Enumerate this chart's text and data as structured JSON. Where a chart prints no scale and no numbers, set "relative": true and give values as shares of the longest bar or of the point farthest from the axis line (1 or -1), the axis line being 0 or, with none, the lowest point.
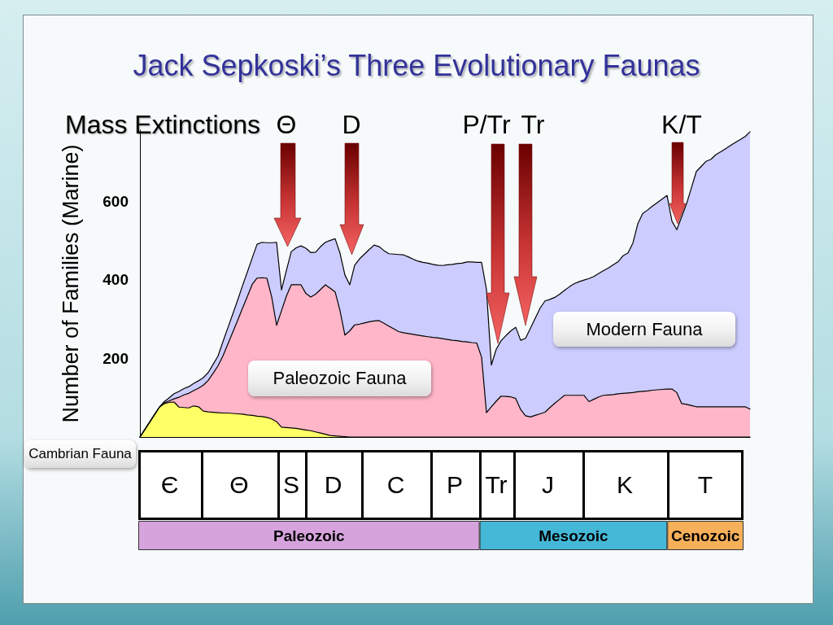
{
  "chart_data": [
    {
      "type": "area",
      "title": "Jack Sepkoski’s Three Evolutionary Faunas",
      "ylabel": "Number of Families (Marine)",
      "annotations": [
        "Mass Extinctions",
        "Θ",
        "D",
        "P/Tr",
        "Tr",
        "K/T"
      ],
      "stacked": true,
      "ylim": [
        0,
        780
      ],
      "yticks": [
        200,
        400,
        600
      ],
      "tick_labels": "y",
      "categories": [
        null,
        null,
        null,
        null,
        null,
        null,
        null,
        null,
        null,
        null,
        null,
        null,
        null,
        null,
        null,
        null,
        null,
        null,
        null,
        null,
        null,
        null,
        null,
        null,
        null,
        null,
        null,
        null,
        null,
        null,
        null,
        null,
        null,
        null,
        null,
        null,
        null,
        null,
        null,
        null,
        null,
        null,
        null,
        null,
        null,
        null,
        null,
        null,
        null,
        null,
        null,
        null,
        null,
        null,
        null,
        null,
        null,
        null,
        null,
        null,
        null,
        null,
        null,
        null,
        null,
        null,
        null,
        null,
        null,
        null,
        null,
        null,
        null,
        null,
        null,
        null,
        null,
        null,
        null,
        null,
        null,
        null,
        null,
        null,
        null,
        null,
        null,
        null,
        null,
        null,
        null,
        null,
        null,
        null,
        null,
        null,
        null,
        null,
        null,
        null,
        null,
        null,
        null,
        null,
        null,
        null,
        null,
        null,
        null,
        null,
        null,
        null,
        null,
        null,
        null,
        null,
        null,
        null,
        null,
        null,
        null,
        null,
        null,
        null,
        null,
        null
      ],
      "series": [
        {
          "name": "Cambrian Fauna",
          "color": "#ffff66",
          "values": [
            0,
            19,
            38,
            57,
            76,
            85,
            88,
            89,
            76,
            75,
            74,
            79,
            77,
            66,
            64,
            63,
            62,
            61,
            61,
            60,
            59,
            58,
            56,
            55,
            53,
            52,
            50,
            46,
            39,
            25,
            24,
            23,
            22,
            20,
            18,
            16,
            13,
            10,
            7,
            4,
            3,
            2,
            1,
            0,
            0,
            0,
            0,
            0,
            0,
            0,
            0,
            0,
            0,
            0,
            0,
            0,
            0,
            0,
            0,
            0,
            0,
            0,
            0,
            0,
            0,
            0,
            0,
            0,
            0,
            0,
            0,
            0,
            0,
            0,
            0,
            0,
            0,
            0,
            0,
            0,
            0,
            0,
            0,
            0,
            0,
            0,
            0,
            0,
            0,
            0,
            0,
            0,
            0,
            0,
            0,
            0,
            0,
            0,
            0,
            0,
            0,
            0,
            0,
            0,
            0,
            0,
            0,
            0,
            0,
            0,
            0,
            0,
            0,
            0,
            0,
            0,
            0,
            0,
            0,
            0,
            0,
            0,
            0,
            0,
            0,
            0
          ]
        },
        {
          "name": "Paleozoic Fauna",
          "color": "#ffb6c9",
          "values": [
            0,
            0,
            0,
            0,
            0,
            2,
            4,
            8,
            25,
            32,
            37,
            39,
            47,
            66,
            80,
            99,
            119,
            145,
            175,
            206,
            237,
            269,
            301,
            333,
            351,
            353,
            354,
            310,
            245,
            296,
            334,
            364,
            365,
            367,
            347,
            340,
            350,
            365,
            380,
            374,
            366,
            319,
            258,
            270,
            285,
            287,
            290,
            293,
            295,
            296,
            289,
            282,
            275,
            268,
            265,
            263,
            261,
            259,
            257,
            255,
            253,
            252,
            250,
            248,
            246,
            245,
            243,
            242,
            240,
            239,
            203,
            62,
            77,
            91,
            104,
            103,
            102,
            98,
            70,
            54,
            51,
            55,
            59,
            63,
            75,
            86,
            96,
            106,
            106,
            106,
            106,
            106,
            90,
            96,
            102,
            106,
            107,
            108,
            110,
            111,
            112,
            113,
            115,
            116,
            117,
            119,
            120,
            121,
            122,
            122,
            113,
            85,
            83,
            80,
            77,
            77,
            77,
            77,
            77,
            77,
            77,
            77,
            77,
            77,
            77,
            71
          ]
        },
        {
          "name": "Modern Fauna",
          "color": "#ccccff",
          "values": [
            0,
            0,
            0,
            0,
            0,
            3,
            8,
            13,
            15,
            16,
            17,
            18,
            19,
            19,
            20,
            23,
            25,
            36,
            41,
            46,
            51,
            57,
            62,
            67,
            86,
            90,
            90,
            138,
            211,
            53,
            65,
            84,
            94,
            99,
            115,
            113,
            107,
            109,
            108,
            122,
            135,
            146,
            153,
            117,
            152,
            166,
            175,
            184,
            193,
            188,
            185,
            184,
            190,
            196,
            198,
            195,
            191,
            188,
            187,
            187,
            186,
            185,
            186,
            190,
            193,
            196,
            199,
            203,
            205,
            205,
            241,
            313,
            106,
            132,
            141,
            155,
            168,
            181,
            176,
            197,
            225,
            247,
            269,
            283,
            275,
            269,
            267,
            267,
            276,
            284,
            289,
            293,
            313,
            312,
            314,
            317,
            323,
            330,
            336,
            350,
            356,
            380,
            427,
            452,
            460,
            468,
            476,
            484,
            492,
            427,
            414,
            475,
            510,
            554,
            598,
            611,
            624,
            629,
            641,
            648,
            656,
            664,
            672,
            679,
            687,
            705
          ]
        }
      ]
    },
    {
      "type": "other",
      "annotations": [
        "Є",
        "Θ",
        "S",
        "D",
        "C",
        "P",
        "Tr",
        "J",
        "K",
        "T"
      ]
    },
    {
      "type": "bar",
      "orientation": "horizontal",
      "stacked": true,
      "relative": true,
      "tick_labels": false,
      "categories": [
        null
      ],
      "series": [
        {
          "name": "Paleozoic",
          "color": "#d7a3dd",
          "values": [
            0.564
          ]
        },
        {
          "name": "Mesozoic",
          "color": "#45b8d8",
          "values": [
            0.31
          ]
        },
        {
          "name": "Cenozoic",
          "color": "#f7b05a",
          "values": [
            0.126
          ]
        }
      ]
    }
  ]
}
